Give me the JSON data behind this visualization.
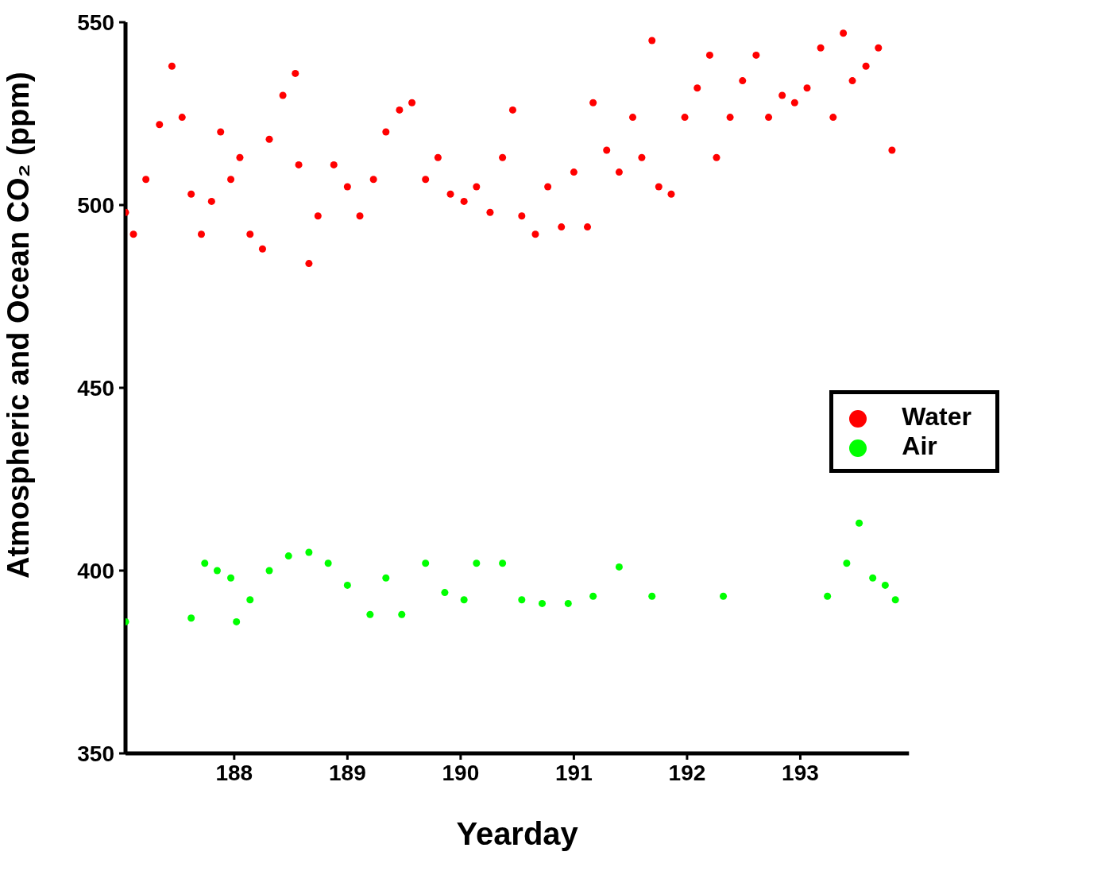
{
  "chart_data": {
    "type": "scatter",
    "xlabel": "Yearday",
    "ylabel": "Atmospheric and Ocean CO₂ (ppm)",
    "xlim": [
      187.04,
      193.96
    ],
    "xticks": [
      188,
      189,
      190,
      191,
      192,
      193
    ],
    "ylim": [
      350,
      550
    ],
    "yticks": [
      350,
      400,
      450,
      500,
      550
    ],
    "grid": false,
    "legend": "right",
    "marker": "circle",
    "series": [
      {
        "name": "Water",
        "color": "#ff0000",
        "x": [
          187.04,
          187.11,
          187.22,
          187.34,
          187.45,
          187.54,
          187.62,
          187.71,
          187.8,
          187.88,
          187.97,
          188.05,
          188.14,
          188.25,
          188.31,
          188.43,
          188.54,
          188.57,
          188.66,
          188.74,
          188.88,
          189.0,
          189.11,
          189.23,
          189.34,
          189.46,
          189.57,
          189.69,
          189.8,
          189.91,
          190.03,
          190.14,
          190.26,
          190.37,
          190.46,
          190.54,
          190.66,
          190.77,
          190.89,
          191.0,
          191.12,
          191.17,
          191.29,
          191.4,
          191.52,
          191.6,
          191.69,
          191.75,
          191.86,
          191.98,
          192.09,
          192.2,
          192.26,
          192.38,
          192.49,
          192.61,
          192.72,
          192.84,
          192.95,
          193.06,
          193.18,
          193.29,
          193.38,
          193.46,
          193.58,
          193.69,
          193.81
        ],
        "values": [
          498,
          492,
          507,
          522,
          538,
          524,
          503,
          492,
          501,
          520,
          507,
          513,
          492,
          488,
          518,
          530,
          536,
          511,
          484,
          497,
          511,
          505,
          497,
          507,
          520,
          526,
          528,
          507,
          513,
          503,
          501,
          505,
          498,
          513,
          526,
          497,
          492,
          505,
          494,
          509,
          494,
          528,
          515,
          509,
          524,
          513,
          545,
          505,
          503,
          524,
          532,
          541,
          513,
          524,
          534,
          541,
          524,
          530,
          528,
          532,
          543,
          524,
          547,
          534,
          538,
          543,
          515
        ]
      },
      {
        "name": "Air",
        "color": "#00ff00",
        "x": [
          187.04,
          187.62,
          187.74,
          187.85,
          187.97,
          188.02,
          188.14,
          188.31,
          188.48,
          188.66,
          188.83,
          189.0,
          189.2,
          189.34,
          189.48,
          189.69,
          189.86,
          190.03,
          190.14,
          190.37,
          190.54,
          190.72,
          190.95,
          191.17,
          191.4,
          191.69,
          192.32,
          193.24,
          193.41,
          193.52,
          193.64,
          193.75,
          193.84
        ],
        "values": [
          386,
          387,
          402,
          400,
          398,
          386,
          392,
          400,
          404,
          405,
          402,
          396,
          388,
          398,
          388,
          402,
          394,
          392,
          402,
          402,
          392,
          391,
          391,
          393,
          401,
          393,
          393,
          393,
          402,
          413,
          398,
          396,
          392
        ]
      }
    ]
  }
}
